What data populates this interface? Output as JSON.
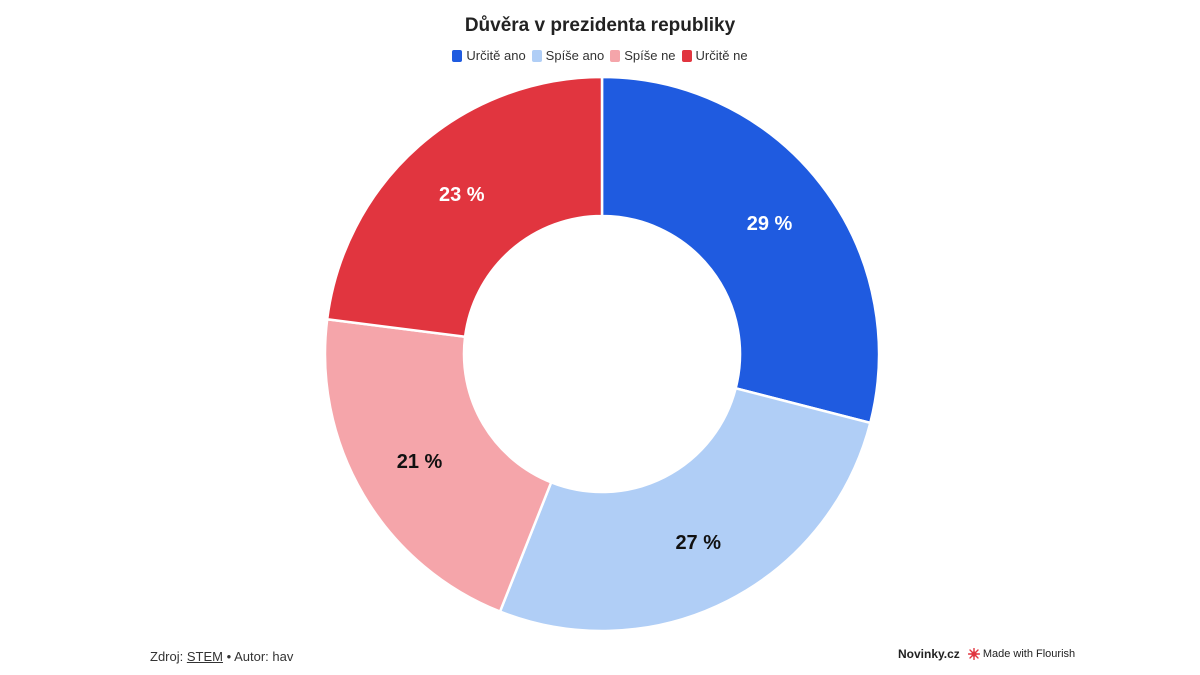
{
  "chart_data": {
    "type": "pie",
    "subtype": "donut",
    "title": "Důvěra v prezidenta republiky",
    "categories": [
      "Určitě ano",
      "Spíše ano",
      "Spíše ne",
      "Určitě ne"
    ],
    "values": [
      29,
      27,
      21,
      23
    ],
    "value_labels": [
      "29 %",
      "27 %",
      "21 %",
      "23 %"
    ],
    "colors": [
      "#1f5be0",
      "#b0cef6",
      "#f5a5aa",
      "#e1353f"
    ],
    "label_colors": [
      "#ffffff",
      "#111111",
      "#111111",
      "#ffffff"
    ],
    "legend_position": "top-center"
  },
  "footer": {
    "source_prefix": "Zdroj:",
    "source_link": "STEM",
    "separator": "•",
    "author": "Autor: hav",
    "brand": "Novinky.cz",
    "flourish": "Made with Flourish"
  }
}
